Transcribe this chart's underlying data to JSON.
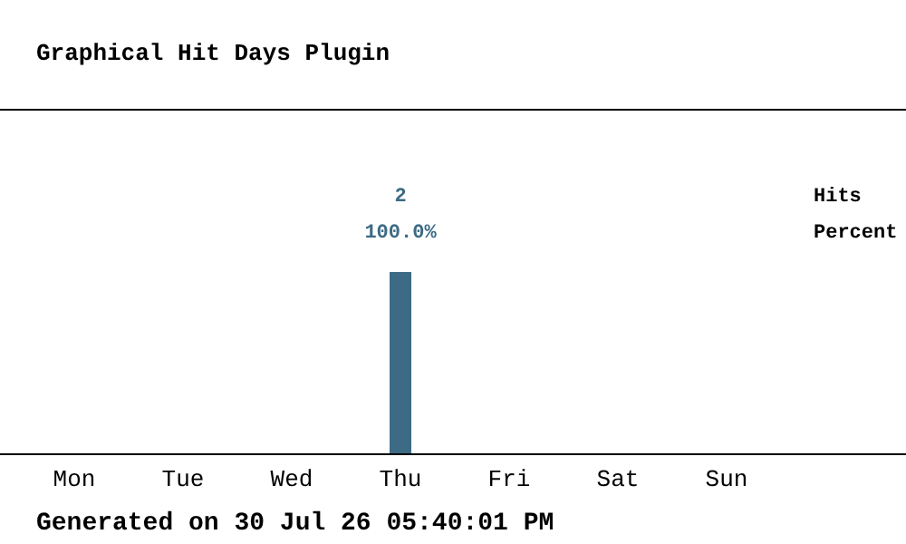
{
  "chart_data": {
    "type": "bar",
    "title": "Graphical Hit Days Plugin",
    "categories": [
      "Mon",
      "Tue",
      "Wed",
      "Thu",
      "Fri",
      "Sat",
      "Sun"
    ],
    "series": [
      {
        "name": "Hits",
        "color": "#3d6b85",
        "values": [
          0,
          0,
          0,
          2,
          0,
          0,
          0
        ],
        "value_labels": [
          null,
          null,
          null,
          "2",
          null,
          null,
          null
        ]
      }
    ],
    "legend": "right",
    "annotations": [
      {
        "text": "100.0%",
        "x": "Thu",
        "y": 2
      },
      "Percent",
      "Generated on 30 Jul 26 05:40:01 PM"
    ]
  }
}
